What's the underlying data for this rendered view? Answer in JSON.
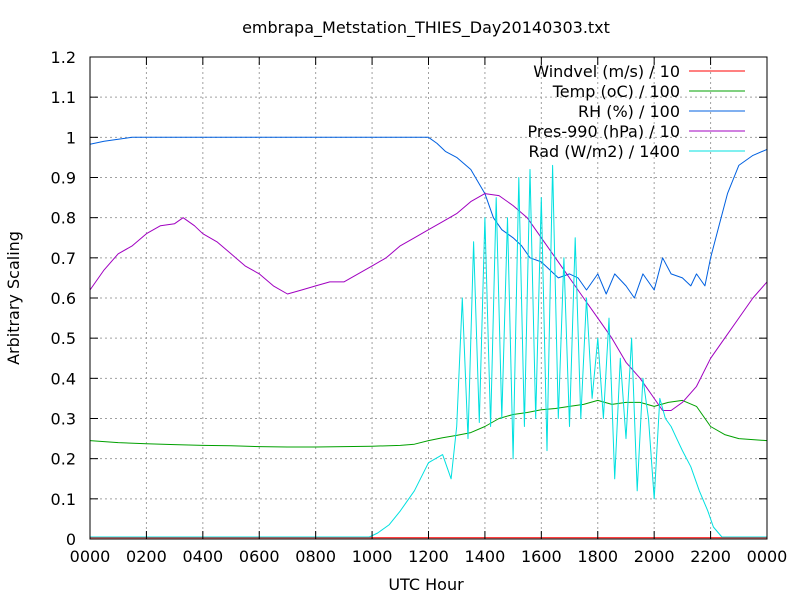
{
  "chart_data": {
    "type": "line",
    "title": "embrapa_Metstation_THIES_Day20140303.txt",
    "xlabel": "UTC Hour",
    "ylabel": "Arbitrary Scaling",
    "xlim": [
      0,
      24
    ],
    "ylim": [
      0,
      1.2
    ],
    "x_tick_values": [
      0,
      2,
      4,
      6,
      8,
      10,
      12,
      14,
      16,
      18,
      20,
      22,
      24
    ],
    "x_tick_labels": [
      "0000",
      "0200",
      "0400",
      "0600",
      "0800",
      "1000",
      "1200",
      "1400",
      "1600",
      "1800",
      "2000",
      "2200",
      "0000"
    ],
    "y_tick_values": [
      0,
      0.1,
      0.2,
      0.3,
      0.4,
      0.5,
      0.6,
      0.7,
      0.8,
      0.9,
      1.0,
      1.1,
      1.2
    ],
    "y_tick_labels": [
      "0",
      "0.1",
      "0.2",
      "0.3",
      "0.4",
      "0.5",
      "0.6",
      "0.7",
      "0.8",
      "0.9",
      "1",
      "1.1",
      "1.2"
    ],
    "grid": true,
    "legend_position": "top-right",
    "series": [
      {
        "name": "Windvel (m/s) / 10",
        "color": "#ff0000",
        "x": [
          0,
          24
        ],
        "y": [
          0.003,
          0.003
        ]
      },
      {
        "name": "Temp (oC) / 100",
        "color": "#00a000",
        "x": [
          0,
          1,
          2,
          3,
          4,
          5,
          6,
          7,
          8,
          9,
          10,
          11,
          11.5,
          12,
          12.5,
          13,
          13.5,
          14,
          14.5,
          15,
          15.5,
          16,
          16.5,
          17,
          17.5,
          18,
          18.5,
          19,
          19.5,
          20,
          20.5,
          21,
          21.5,
          22,
          22.5,
          23,
          24
        ],
        "y": [
          0.245,
          0.24,
          0.237,
          0.235,
          0.233,
          0.232,
          0.23,
          0.229,
          0.229,
          0.23,
          0.231,
          0.233,
          0.236,
          0.245,
          0.252,
          0.258,
          0.265,
          0.28,
          0.3,
          0.31,
          0.315,
          0.322,
          0.325,
          0.33,
          0.335,
          0.345,
          0.335,
          0.34,
          0.34,
          0.33,
          0.34,
          0.345,
          0.33,
          0.28,
          0.26,
          0.25,
          0.245
        ]
      },
      {
        "name": "RH (%) / 100",
        "color": "#0060e0",
        "x": [
          0,
          0.5,
          1,
          1.5,
          2,
          4,
          6,
          8,
          10,
          11,
          12,
          12.3,
          12.6,
          13,
          13.5,
          14,
          14.3,
          14.6,
          15,
          15.3,
          15.6,
          16,
          16.3,
          16.6,
          17,
          17.3,
          17.6,
          18,
          18.3,
          18.6,
          19,
          19.3,
          19.6,
          20,
          20.3,
          20.6,
          21,
          21.3,
          21.5,
          21.8,
          22,
          22.3,
          22.6,
          23,
          23.5,
          24
        ],
        "y": [
          0.983,
          0.99,
          0.995,
          1.0,
          1.0,
          1.0,
          1.0,
          1.0,
          1.0,
          1.0,
          1.0,
          0.985,
          0.965,
          0.95,
          0.92,
          0.86,
          0.8,
          0.77,
          0.75,
          0.73,
          0.7,
          0.69,
          0.67,
          0.65,
          0.66,
          0.65,
          0.62,
          0.66,
          0.61,
          0.66,
          0.63,
          0.6,
          0.66,
          0.62,
          0.7,
          0.66,
          0.65,
          0.63,
          0.66,
          0.63,
          0.7,
          0.78,
          0.86,
          0.93,
          0.955,
          0.97
        ]
      },
      {
        "name": "Pres-990 (hPa) / 10",
        "color": "#a000c0",
        "x": [
          0,
          0.5,
          1,
          1.5,
          2,
          2.5,
          3,
          3.3,
          3.7,
          4,
          4.5,
          5,
          5.5,
          6,
          6.5,
          7,
          7.5,
          8,
          8.5,
          9,
          9.5,
          10,
          10.5,
          11,
          11.5,
          12,
          12.5,
          13,
          13.5,
          14,
          14.5,
          15,
          15.5,
          16,
          16.5,
          17,
          17.5,
          18,
          18.5,
          19,
          19.5,
          20,
          20.3,
          20.6,
          21,
          21.5,
          22,
          22.5,
          23,
          23.5,
          24
        ],
        "y": [
          0.62,
          0.67,
          0.71,
          0.73,
          0.76,
          0.78,
          0.785,
          0.8,
          0.78,
          0.76,
          0.74,
          0.71,
          0.68,
          0.66,
          0.63,
          0.61,
          0.62,
          0.63,
          0.64,
          0.64,
          0.66,
          0.68,
          0.7,
          0.73,
          0.75,
          0.77,
          0.79,
          0.81,
          0.84,
          0.86,
          0.855,
          0.83,
          0.8,
          0.75,
          0.7,
          0.65,
          0.6,
          0.55,
          0.5,
          0.44,
          0.4,
          0.35,
          0.32,
          0.32,
          0.34,
          0.38,
          0.45,
          0.5,
          0.55,
          0.6,
          0.64
        ]
      },
      {
        "name": "Rad (W/m2) / 1400",
        "color": "#00e0e0",
        "x": [
          0,
          9.9,
          10.2,
          10.6,
          11,
          11.5,
          12,
          12.5,
          12.8,
          13,
          13.2,
          13.4,
          13.6,
          13.8,
          14,
          14.2,
          14.4,
          14.6,
          14.8,
          15,
          15.2,
          15.4,
          15.6,
          15.8,
          16,
          16.2,
          16.4,
          16.6,
          16.8,
          17,
          17.2,
          17.4,
          17.6,
          17.8,
          18,
          18.2,
          18.4,
          18.6,
          18.8,
          19,
          19.2,
          19.4,
          19.6,
          19.8,
          20,
          20.2,
          20.4,
          20.6,
          20.8,
          21,
          21.3,
          21.6,
          21.9,
          22.1,
          22.4,
          24
        ],
        "y": [
          0.005,
          0.005,
          0.015,
          0.035,
          0.07,
          0.12,
          0.19,
          0.21,
          0.15,
          0.28,
          0.6,
          0.25,
          0.74,
          0.29,
          0.8,
          0.28,
          0.85,
          0.3,
          0.8,
          0.2,
          0.9,
          0.28,
          0.92,
          0.3,
          0.85,
          0.22,
          0.93,
          0.3,
          0.7,
          0.28,
          0.75,
          0.3,
          0.6,
          0.35,
          0.5,
          0.3,
          0.55,
          0.15,
          0.45,
          0.25,
          0.5,
          0.12,
          0.4,
          0.3,
          0.1,
          0.35,
          0.3,
          0.28,
          0.25,
          0.22,
          0.18,
          0.12,
          0.07,
          0.03,
          0.005,
          0.005
        ]
      }
    ]
  }
}
